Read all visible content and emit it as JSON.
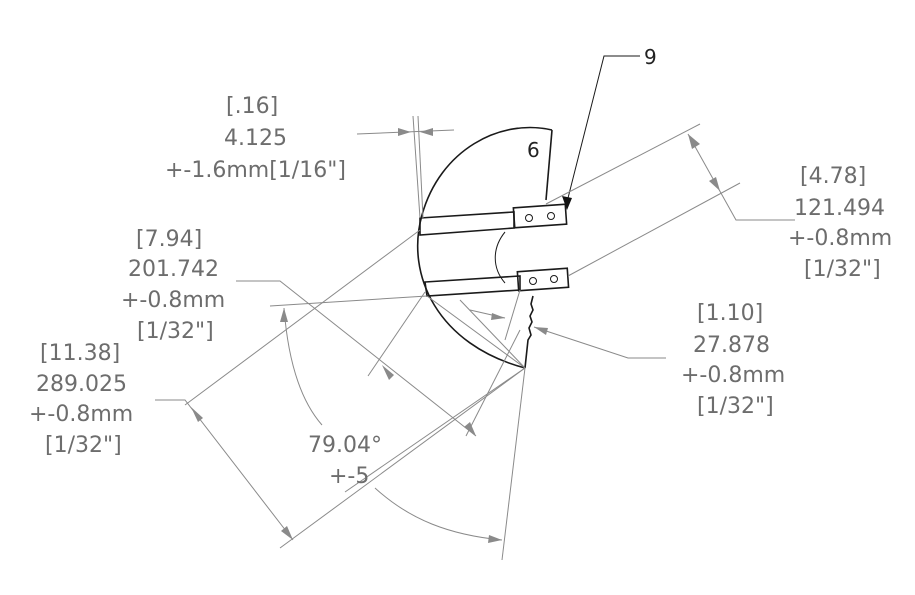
{
  "balloons": {
    "main_item": "9",
    "part_label": "6"
  },
  "dimensions": {
    "top_offset": {
      "ref": "[.16]",
      "value": "4.125",
      "tol": "+-1.6mm[1/16\"]"
    },
    "right_upper": {
      "ref": "[4.78]",
      "value": "121.494",
      "tol": "+-0.8mm",
      "tol_frac": "[1/32\"]"
    },
    "left_middle": {
      "ref": "[7.94]",
      "value": "201.742",
      "tol": "+-0.8mm",
      "tol_frac": "[1/32\"]"
    },
    "right_lower": {
      "ref": "[1.10]",
      "value": "27.878",
      "tol": "+-0.8mm",
      "tol_frac": "[1/32\"]"
    },
    "left_lower": {
      "ref": "[11.38]",
      "value": "289.025",
      "tol": "+-0.8mm",
      "tol_frac": "[1/32\"]"
    },
    "angle": {
      "value": "79.04°",
      "tol": "+-5"
    }
  },
  "colors": {
    "dimension_text": "#6d6d6d",
    "part_outline": "#1a1a1a",
    "dimension_line": "#8a8a8a"
  }
}
